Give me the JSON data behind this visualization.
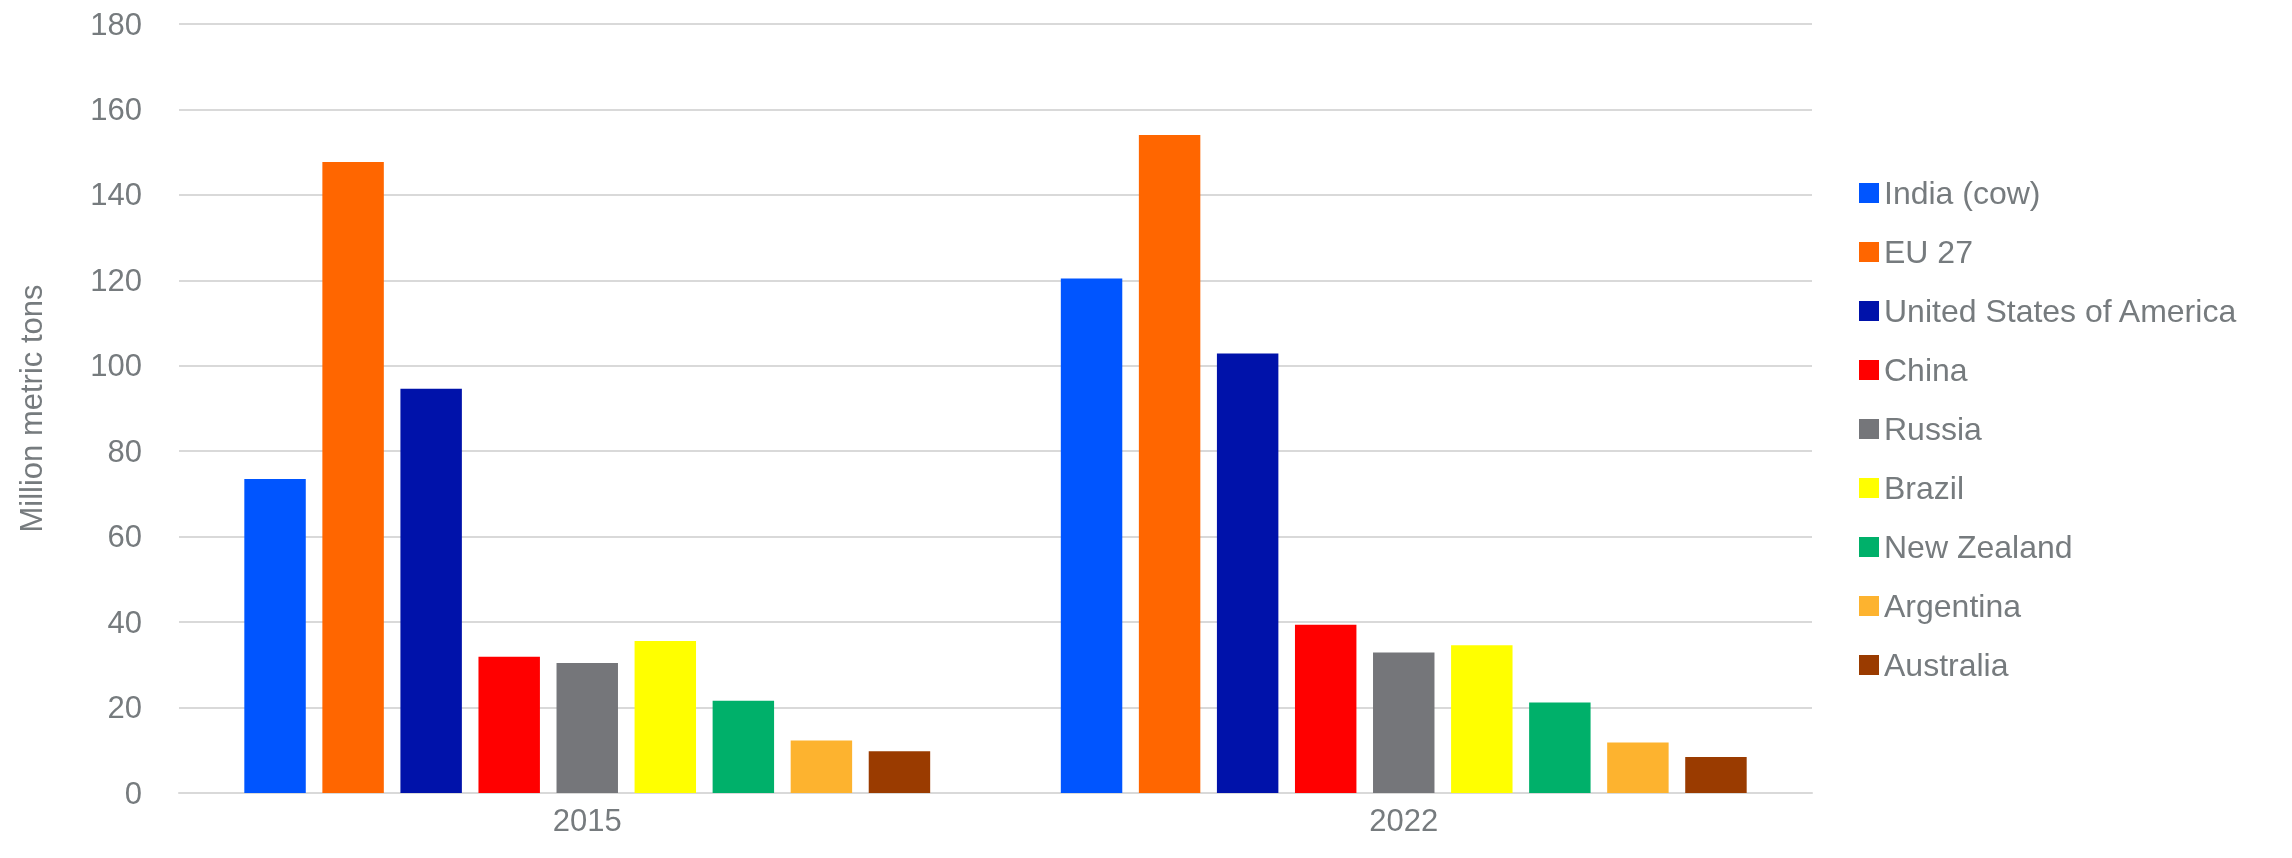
{
  "chart_data": {
    "type": "bar",
    "ylabel": "Million metric tons",
    "categories": [
      "2015",
      "2022"
    ],
    "series": [
      {
        "name": "India (cow)",
        "color": "#0055ff",
        "values": [
          73.5,
          120.4
        ]
      },
      {
        "name": "EU 27",
        "color": "#ff6600",
        "values": [
          147.7,
          154.0
        ]
      },
      {
        "name": "United States of America",
        "color": "#0012aa",
        "values": [
          94.6,
          102.9
        ]
      },
      {
        "name": "China",
        "color": "#ff0000",
        "values": [
          31.9,
          39.4
        ]
      },
      {
        "name": "Russia",
        "color": "#75767a",
        "values": [
          30.4,
          32.9
        ]
      },
      {
        "name": "Brazil",
        "color": "#ffff00",
        "values": [
          35.6,
          34.6
        ]
      },
      {
        "name": "New Zealand",
        "color": "#00b06a",
        "values": [
          21.6,
          21.2
        ]
      },
      {
        "name": "Argentina",
        "color": "#fdb32f",
        "values": [
          12.3,
          11.8
        ]
      },
      {
        "name": "Australia",
        "color": "#9a3b00",
        "values": [
          9.8,
          8.4
        ]
      }
    ],
    "ylim": [
      0,
      180
    ],
    "yticks": [
      0,
      20,
      40,
      60,
      80,
      100,
      120,
      140,
      160,
      180
    ],
    "grid": "y",
    "legend": "right"
  }
}
